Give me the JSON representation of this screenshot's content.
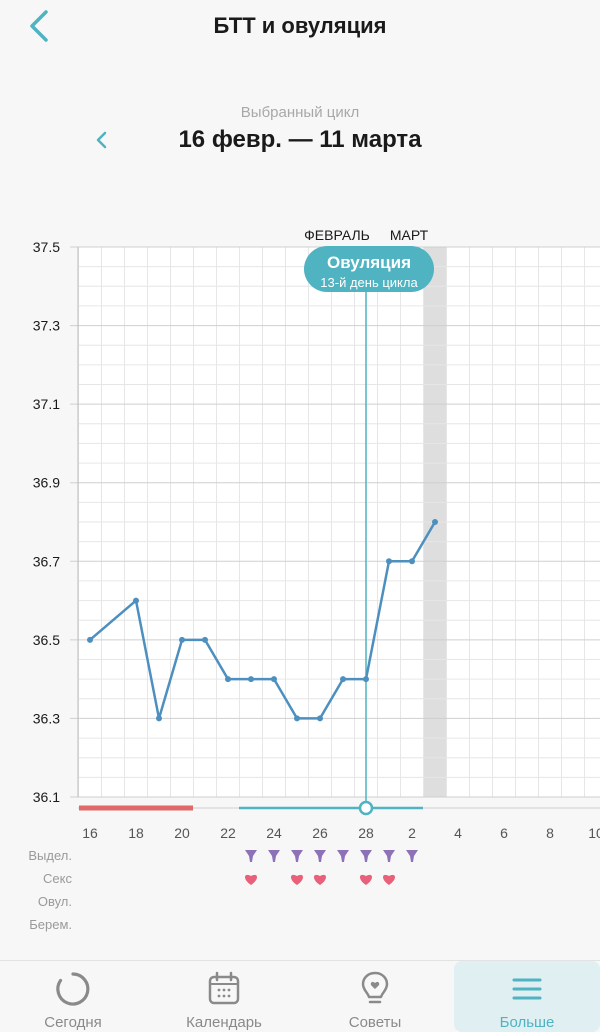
{
  "header": {
    "title": "БТТ и овуляция"
  },
  "cycle": {
    "label": "Выбранный цикл",
    "range": "16 февр. — 11 марта"
  },
  "chart_data": {
    "type": "line",
    "y_ticks": [
      "37.5",
      "37.3",
      "37.1",
      "36.9",
      "36.7",
      "36.5",
      "36.3",
      "36.1"
    ],
    "ylim": [
      36.1,
      37.5
    ],
    "x_tick_labels": [
      "16",
      "18",
      "20",
      "22",
      "24",
      "26",
      "28",
      "2",
      "4",
      "6",
      "8",
      "10"
    ],
    "days": [
      16,
      17,
      18,
      19,
      20,
      21,
      22,
      23,
      24,
      25,
      26,
      27,
      28,
      29,
      30,
      31,
      32
    ],
    "series": [
      {
        "values": [
          36.5,
          null,
          36.6,
          36.3,
          36.5,
          36.5,
          36.4,
          36.4,
          36.4,
          36.3,
          36.3,
          36.4,
          36.4,
          36.7,
          36.7,
          36.8,
          null
        ]
      }
    ],
    "month_labels": [
      "ФЕВРАЛЬ",
      "МАРТ"
    ],
    "ovulation": {
      "title": "Овуляция",
      "subtitle": "13-й день цикла",
      "day": 28
    },
    "highlight_day": 31,
    "period_days": [
      16,
      20
    ],
    "fertile_days": [
      22,
      30
    ],
    "rows": {
      "labels": [
        "Выдел.",
        "Секс",
        "Овул.",
        "Берем."
      ],
      "discharge_days": [
        23,
        24,
        25,
        26,
        27,
        28,
        29,
        30
      ],
      "sex_days": [
        23,
        25,
        26,
        28,
        29
      ]
    },
    "colors": {
      "line": "#4d8fbf",
      "accent": "#4fb3c1",
      "period": "#e06a6a",
      "discharge": "#8e72b8",
      "sex": "#e8607a",
      "highlight": "#dedede",
      "grid": "#e6e6e6"
    }
  },
  "tabbar": {
    "tabs": [
      {
        "label": "Сегодня",
        "icon": "today-ring-icon"
      },
      {
        "label": "Календарь",
        "icon": "calendar-icon"
      },
      {
        "label": "Советы",
        "icon": "tips-bulb-icon"
      },
      {
        "label": "Больше",
        "icon": "menu-icon"
      }
    ]
  }
}
